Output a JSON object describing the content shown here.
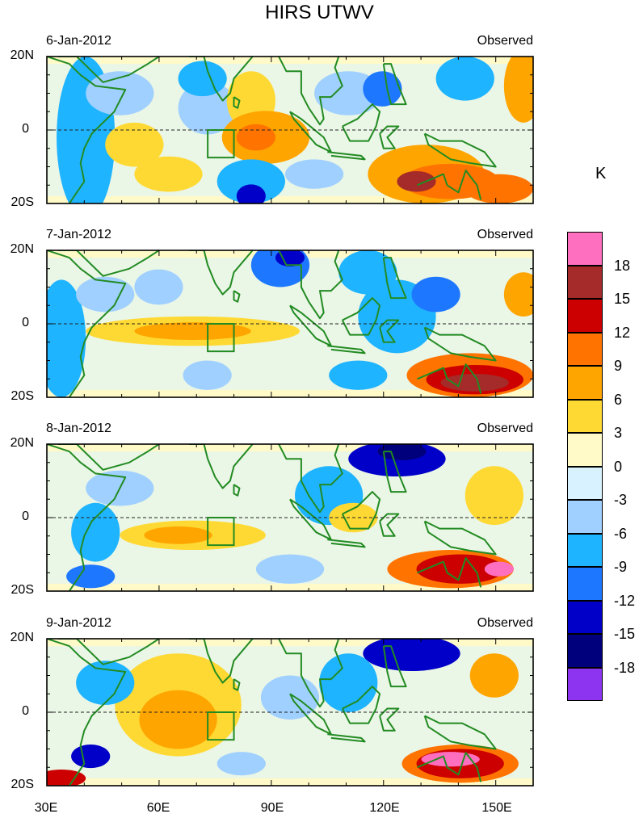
{
  "title": "HIRS UTWV",
  "units": "K",
  "panel_type_label": "Observed",
  "panels": [
    {
      "date": "6-Jan-2012"
    },
    {
      "date": "7-Jan-2012"
    },
    {
      "date": "8-Jan-2012"
    },
    {
      "date": "9-Jan-2012"
    }
  ],
  "y_labels": [
    "20N",
    "0",
    "20S"
  ],
  "x_labels": [
    "30E",
    "60E",
    "90E",
    "120E",
    "150E"
  ],
  "colorbar": {
    "labels": [
      "18",
      "15",
      "12",
      "9",
      "6",
      "3",
      "0",
      "-3",
      "-6",
      "-9",
      "-12",
      "-15",
      "-18"
    ],
    "colors": [
      "#ff6fc0",
      "#a52a2a",
      "#cc0000",
      "#ff7400",
      "#ffa500",
      "#ffd933",
      "#fffac8",
      "#d8f3ff",
      "#a0d0ff",
      "#1fb4ff",
      "#1e78ff",
      "#0000c8",
      "#00007d",
      "#8c34f0"
    ]
  },
  "colors": {
    "coast": "#228b22",
    "frame": "#000000"
  }
}
